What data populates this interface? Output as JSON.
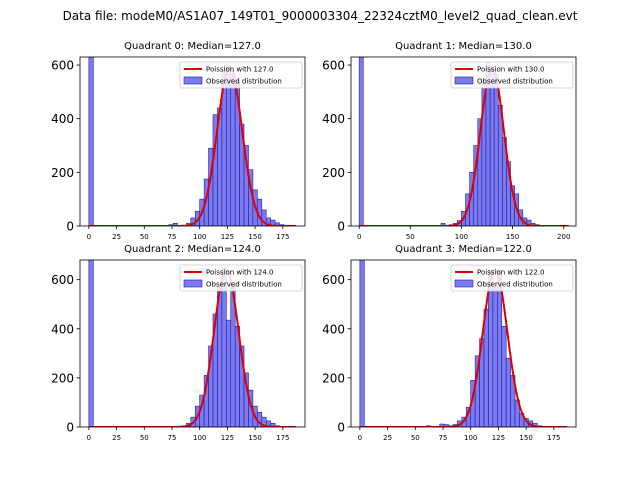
{
  "figure": {
    "suptitle": "Data file: modeM0/AS1A07_149T01_9000003304_22324cztM0_level2_quad_clean.evt"
  },
  "colors": {
    "bar_fill": "#7b7bef",
    "bar_edge": "#1f1fa8",
    "fit_line": "#e00000"
  },
  "chart_data": [
    {
      "type": "bar",
      "title": "Quadrant 0: Median=127.0",
      "legend": {
        "placement": "top-right",
        "fit_label": "Poission with 127.0",
        "hist_label": "Observed distribution"
      },
      "xlim": [
        -8,
        195
      ],
      "ylim": [
        0,
        630
      ],
      "xticks": [
        0,
        25,
        50,
        75,
        100,
        125,
        150,
        175
      ],
      "yticks": [
        0,
        200,
        400,
        600
      ],
      "bin_width": 4,
      "bins": [
        {
          "x": 0,
          "y": 630
        },
        {
          "x": 72,
          "y": 5
        },
        {
          "x": 76,
          "y": 10
        },
        {
          "x": 84,
          "y": 3
        },
        {
          "x": 88,
          "y": 10
        },
        {
          "x": 92,
          "y": 30
        },
        {
          "x": 96,
          "y": 55
        },
        {
          "x": 100,
          "y": 100
        },
        {
          "x": 104,
          "y": 175
        },
        {
          "x": 108,
          "y": 290
        },
        {
          "x": 112,
          "y": 415
        },
        {
          "x": 116,
          "y": 440
        },
        {
          "x": 120,
          "y": 580
        },
        {
          "x": 124,
          "y": 600
        },
        {
          "x": 128,
          "y": 565
        },
        {
          "x": 132,
          "y": 540
        },
        {
          "x": 136,
          "y": 380
        },
        {
          "x": 140,
          "y": 300
        },
        {
          "x": 144,
          "y": 210
        },
        {
          "x": 148,
          "y": 135
        },
        {
          "x": 152,
          "y": 100
        },
        {
          "x": 156,
          "y": 60
        },
        {
          "x": 160,
          "y": 30
        },
        {
          "x": 164,
          "y": 22
        },
        {
          "x": 168,
          "y": 12
        },
        {
          "x": 172,
          "y": 5
        },
        {
          "x": 176,
          "y": 3
        }
      ],
      "fit": {
        "lambda": 127,
        "peak": 590,
        "x_range": [
          0,
          187
        ]
      }
    },
    {
      "type": "bar",
      "title": "Quadrant 1: Median=130.0",
      "legend": {
        "placement": "top-right",
        "fit_label": "Poission with 130.0",
        "hist_label": "Observed distribution"
      },
      "xlim": [
        -8,
        212
      ],
      "ylim": [
        0,
        630
      ],
      "xticks": [
        0,
        50,
        100,
        150,
        200
      ],
      "yticks": [
        0,
        200,
        400,
        600
      ],
      "bin_width": 4,
      "bins": [
        {
          "x": 0,
          "y": 630
        },
        {
          "x": 80,
          "y": 10
        },
        {
          "x": 88,
          "y": 5
        },
        {
          "x": 92,
          "y": 10
        },
        {
          "x": 96,
          "y": 20
        },
        {
          "x": 100,
          "y": 55
        },
        {
          "x": 104,
          "y": 120
        },
        {
          "x": 108,
          "y": 200
        },
        {
          "x": 112,
          "y": 300
        },
        {
          "x": 116,
          "y": 400
        },
        {
          "x": 120,
          "y": 540
        },
        {
          "x": 124,
          "y": 610
        },
        {
          "x": 128,
          "y": 580
        },
        {
          "x": 132,
          "y": 565
        },
        {
          "x": 136,
          "y": 450
        },
        {
          "x": 140,
          "y": 330
        },
        {
          "x": 144,
          "y": 240
        },
        {
          "x": 148,
          "y": 150
        },
        {
          "x": 152,
          "y": 120
        },
        {
          "x": 156,
          "y": 60
        },
        {
          "x": 160,
          "y": 30
        },
        {
          "x": 164,
          "y": 22
        },
        {
          "x": 168,
          "y": 10
        },
        {
          "x": 172,
          "y": 5
        }
      ],
      "fit": {
        "lambda": 130,
        "peak": 590,
        "x_range": [
          0,
          205
        ]
      }
    },
    {
      "type": "bar",
      "title": "Quadrant 2: Median=124.0",
      "legend": {
        "placement": "top-right",
        "fit_label": "Poission with 124.0",
        "hist_label": "Observed distribution"
      },
      "xlim": [
        -8,
        195
      ],
      "ylim": [
        0,
        680
      ],
      "xticks": [
        0,
        25,
        50,
        75,
        100,
        125,
        150,
        175
      ],
      "yticks": [
        0,
        200,
        400,
        600
      ],
      "bin_width": 4,
      "bins": [
        {
          "x": 0,
          "y": 680
        },
        {
          "x": 76,
          "y": 3
        },
        {
          "x": 84,
          "y": 5
        },
        {
          "x": 88,
          "y": 15
        },
        {
          "x": 92,
          "y": 40
        },
        {
          "x": 96,
          "y": 85
        },
        {
          "x": 100,
          "y": 130
        },
        {
          "x": 104,
          "y": 210
        },
        {
          "x": 108,
          "y": 330
        },
        {
          "x": 112,
          "y": 460
        },
        {
          "x": 116,
          "y": 570
        },
        {
          "x": 120,
          "y": 650
        },
        {
          "x": 124,
          "y": 435
        },
        {
          "x": 128,
          "y": 580
        },
        {
          "x": 132,
          "y": 410
        },
        {
          "x": 136,
          "y": 330
        },
        {
          "x": 140,
          "y": 220
        },
        {
          "x": 144,
          "y": 150
        },
        {
          "x": 148,
          "y": 85
        },
        {
          "x": 152,
          "y": 60
        },
        {
          "x": 156,
          "y": 40
        },
        {
          "x": 160,
          "y": 25
        },
        {
          "x": 164,
          "y": 15
        },
        {
          "x": 168,
          "y": 5
        }
      ],
      "fit": {
        "lambda": 124,
        "peak": 640,
        "x_range": [
          0,
          187
        ]
      }
    },
    {
      "type": "bar",
      "title": "Quadrant 3: Median=122.0",
      "legend": {
        "placement": "top-right",
        "fit_label": "Poission with 122.0",
        "hist_label": "Observed distribution"
      },
      "xlim": [
        -8,
        195
      ],
      "ylim": [
        0,
        680
      ],
      "xticks": [
        0,
        25,
        50,
        75,
        100,
        125,
        150,
        175
      ],
      "yticks": [
        0,
        200,
        400,
        600
      ],
      "bin_width": 4,
      "bins": [
        {
          "x": 0,
          "y": 680
        },
        {
          "x": 60,
          "y": 5
        },
        {
          "x": 72,
          "y": 12
        },
        {
          "x": 76,
          "y": 10
        },
        {
          "x": 80,
          "y": 5
        },
        {
          "x": 84,
          "y": 10
        },
        {
          "x": 88,
          "y": 25
        },
        {
          "x": 92,
          "y": 40
        },
        {
          "x": 96,
          "y": 80
        },
        {
          "x": 100,
          "y": 190
        },
        {
          "x": 104,
          "y": 290
        },
        {
          "x": 108,
          "y": 360
        },
        {
          "x": 112,
          "y": 480
        },
        {
          "x": 116,
          "y": 640
        },
        {
          "x": 120,
          "y": 570
        },
        {
          "x": 124,
          "y": 640
        },
        {
          "x": 128,
          "y": 410
        },
        {
          "x": 132,
          "y": 280
        },
        {
          "x": 136,
          "y": 210
        },
        {
          "x": 140,
          "y": 110
        },
        {
          "x": 144,
          "y": 55
        },
        {
          "x": 148,
          "y": 35
        },
        {
          "x": 152,
          "y": 25
        },
        {
          "x": 156,
          "y": 15
        },
        {
          "x": 160,
          "y": 5
        }
      ],
      "fit": {
        "lambda": 122,
        "peak": 640,
        "x_range": [
          0,
          187
        ]
      }
    }
  ]
}
